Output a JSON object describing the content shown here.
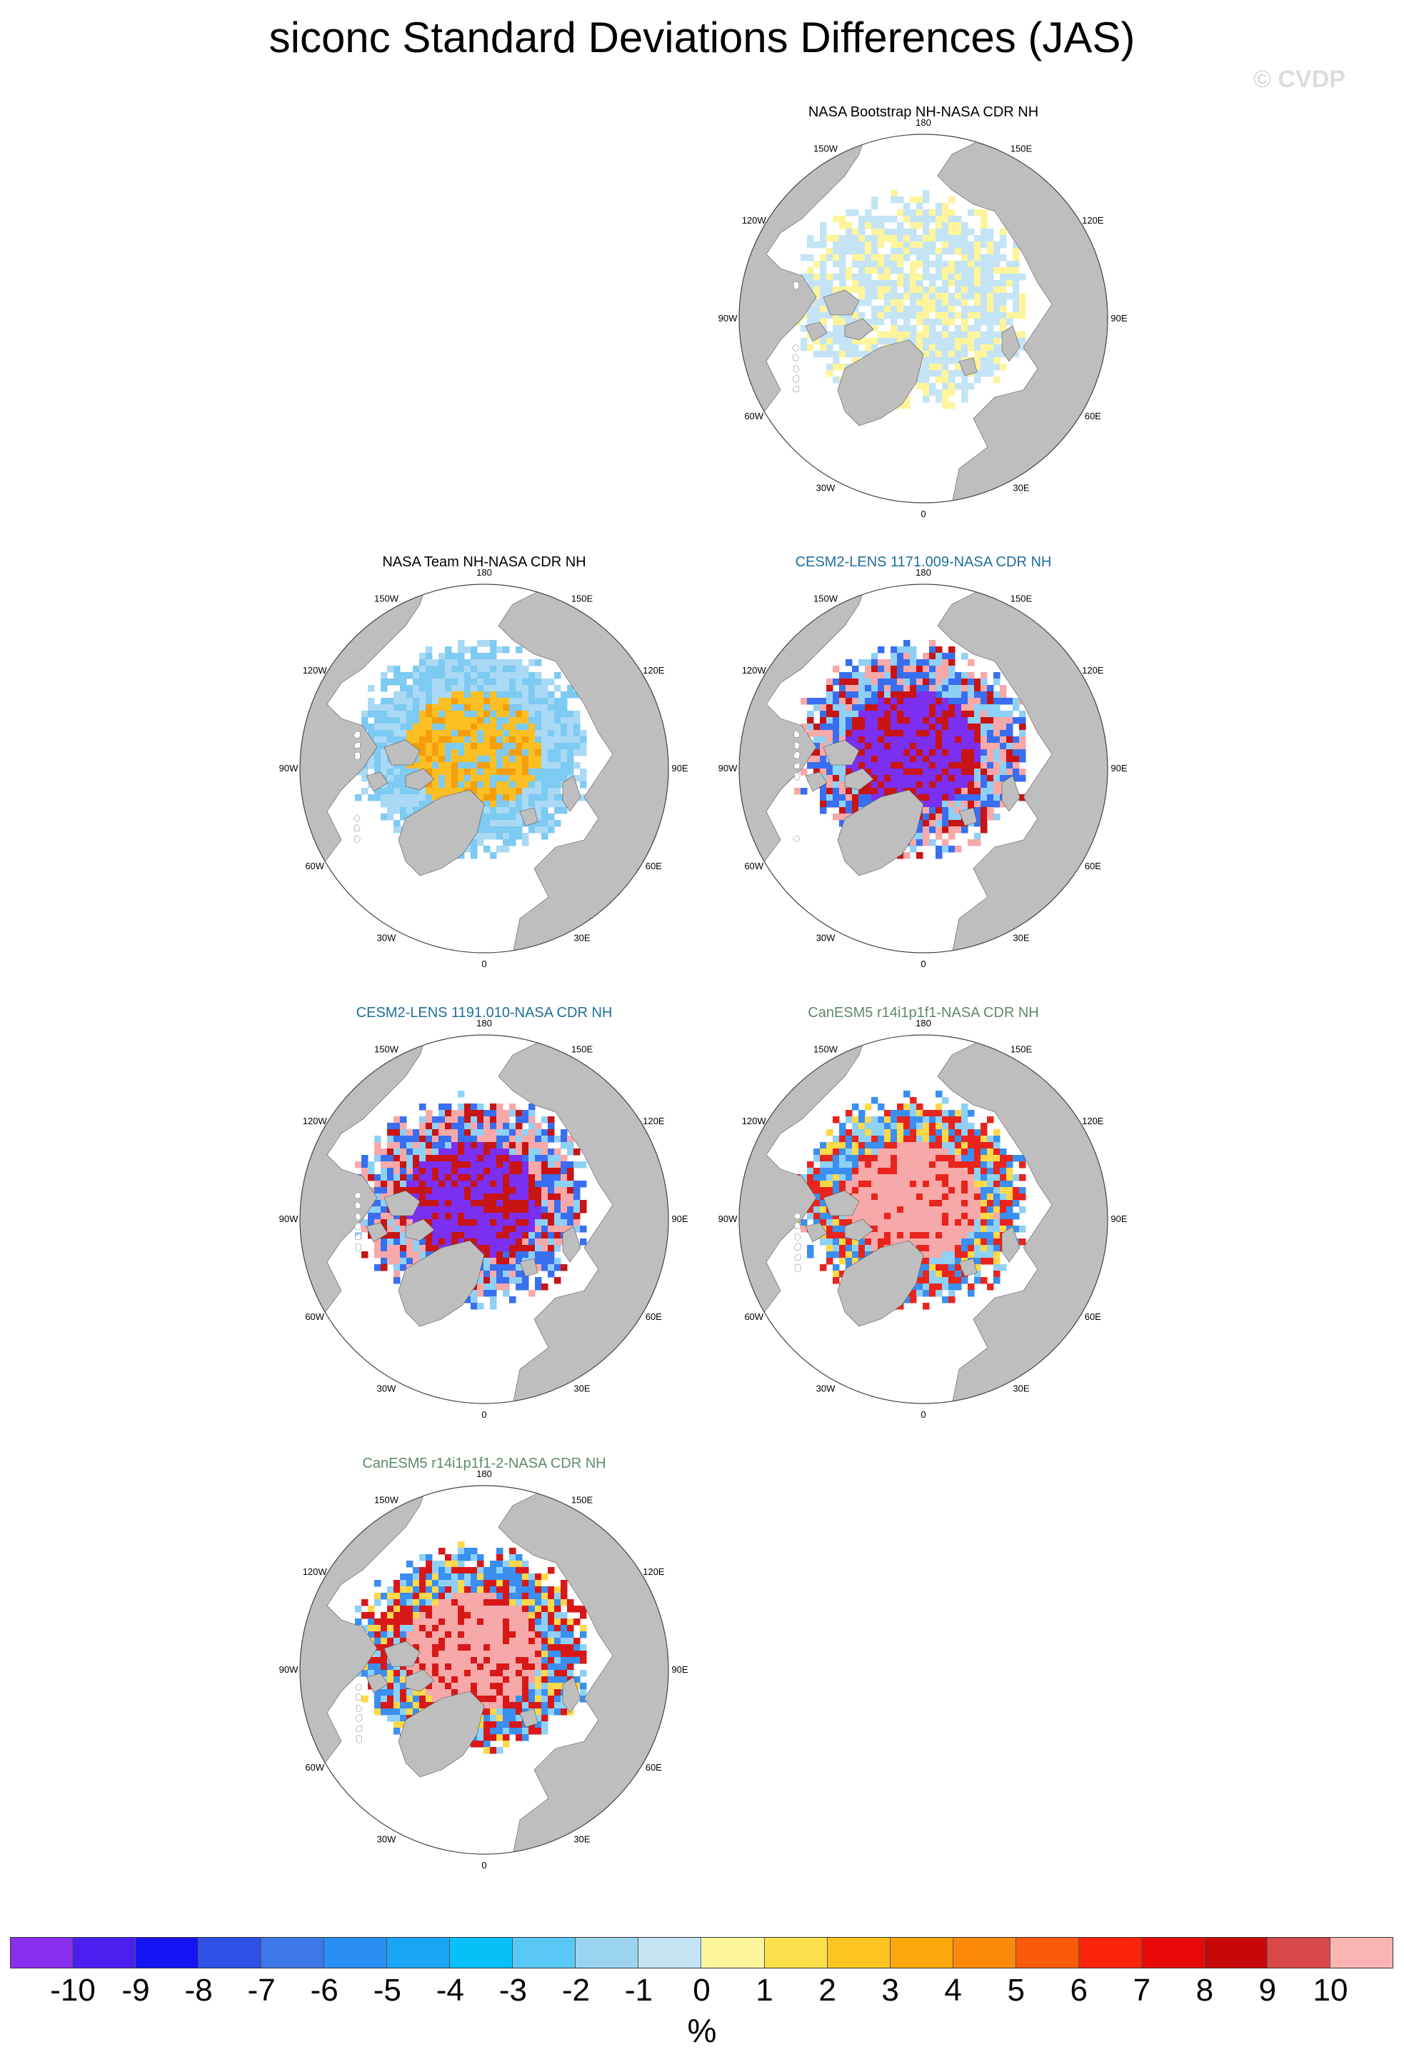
{
  "title": "siconc Standard Deviations Differences (JAS)",
  "watermark": "© CVDP",
  "lon_labels": {
    "top": "180",
    "bottom": "0",
    "w150": "150W",
    "e150": "150E",
    "w120": "120W",
    "e120": "120E",
    "w90": "90W",
    "e90": "90E",
    "w60": "60W",
    "e60": "60E",
    "w30": "30W",
    "e30": "30E"
  },
  "colors": {
    "land": "#bebebe",
    "ocean": "#ffffff",
    "title_black": "#000000",
    "title_blue": "#1f6e9a",
    "title_green": "#5c8a6a"
  },
  "panels": [
    {
      "id": "p1",
      "title": "NASA Bootstrap NH-NASA CDR NH",
      "title_color": "#000000",
      "pattern": [
        [
          "#c4e4f6",
          0.62
        ],
        [
          "#fdf49c",
          0.38
        ]
      ]
    },
    {
      "id": "p2",
      "title": "NASA Team NH-NASA CDR NH",
      "title_color": "#000000",
      "pattern": [
        [
          "#fbbf24",
          0.25
        ],
        [
          "#f59e0b",
          0.1
        ],
        [
          "#7dcaf2",
          0.35
        ],
        [
          "#a9d9f4",
          0.3
        ]
      ]
    },
    {
      "id": "p3",
      "title": "CESM2-LENS 1171.009-NASA CDR NH",
      "title_color": "#1f6e9a",
      "pattern": [
        [
          "#7b2ff0",
          0.28
        ],
        [
          "#c81414",
          0.18
        ],
        [
          "#f7a8a8",
          0.18
        ],
        [
          "#3a6ef0",
          0.2
        ],
        [
          "#8fd0f5",
          0.16
        ]
      ]
    },
    {
      "id": "p4",
      "title": "CESM2-LENS 1191.010-NASA CDR NH",
      "title_color": "#1f6e9a",
      "pattern": [
        [
          "#7b2ff0",
          0.3
        ],
        [
          "#c81414",
          0.16
        ],
        [
          "#f7a8a8",
          0.2
        ],
        [
          "#3a6ef0",
          0.2
        ],
        [
          "#8fd0f5",
          0.14
        ]
      ]
    },
    {
      "id": "p5",
      "title": "CanESM5 r14i1p1f1-NASA CDR NH",
      "title_color": "#5c8a6a",
      "pattern": [
        [
          "#f7a8a8",
          0.36
        ],
        [
          "#e8241c",
          0.2
        ],
        [
          "#3a8ff0",
          0.18
        ],
        [
          "#fdd84a",
          0.1
        ],
        [
          "#8fd0f5",
          0.16
        ]
      ]
    },
    {
      "id": "p6",
      "title": "CanESM5 r14i1p1f1-2-NASA CDR NH",
      "title_color": "#5c8a6a",
      "pattern": [
        [
          "#f7a8a8",
          0.34
        ],
        [
          "#d81818",
          0.22
        ],
        [
          "#3a8ff0",
          0.18
        ],
        [
          "#fdd84a",
          0.12
        ],
        [
          "#8fd0f5",
          0.14
        ]
      ]
    }
  ],
  "colorbar": {
    "units": "%",
    "labels": [
      "-10",
      "-9",
      "-8",
      "-7",
      "-6",
      "-5",
      "-4",
      "-3",
      "-2",
      "-1",
      "0",
      "1",
      "2",
      "3",
      "4",
      "5",
      "6",
      "7",
      "8",
      "9",
      "10"
    ],
    "colors": [
      "#8a2ef0",
      "#4a1ff0",
      "#1414f5",
      "#2f50e6",
      "#3d78e8",
      "#2a8ff5",
      "#1aa6f5",
      "#08c0f8",
      "#5ac8f5",
      "#9ad4f0",
      "#c4e4f6",
      "#fef59c",
      "#fde04a",
      "#fcc522",
      "#fba80a",
      "#fb8a0a",
      "#fb5a0a",
      "#fb240a",
      "#e80808",
      "#c80808",
      "#d84848",
      "#fbb4b4"
    ]
  }
}
